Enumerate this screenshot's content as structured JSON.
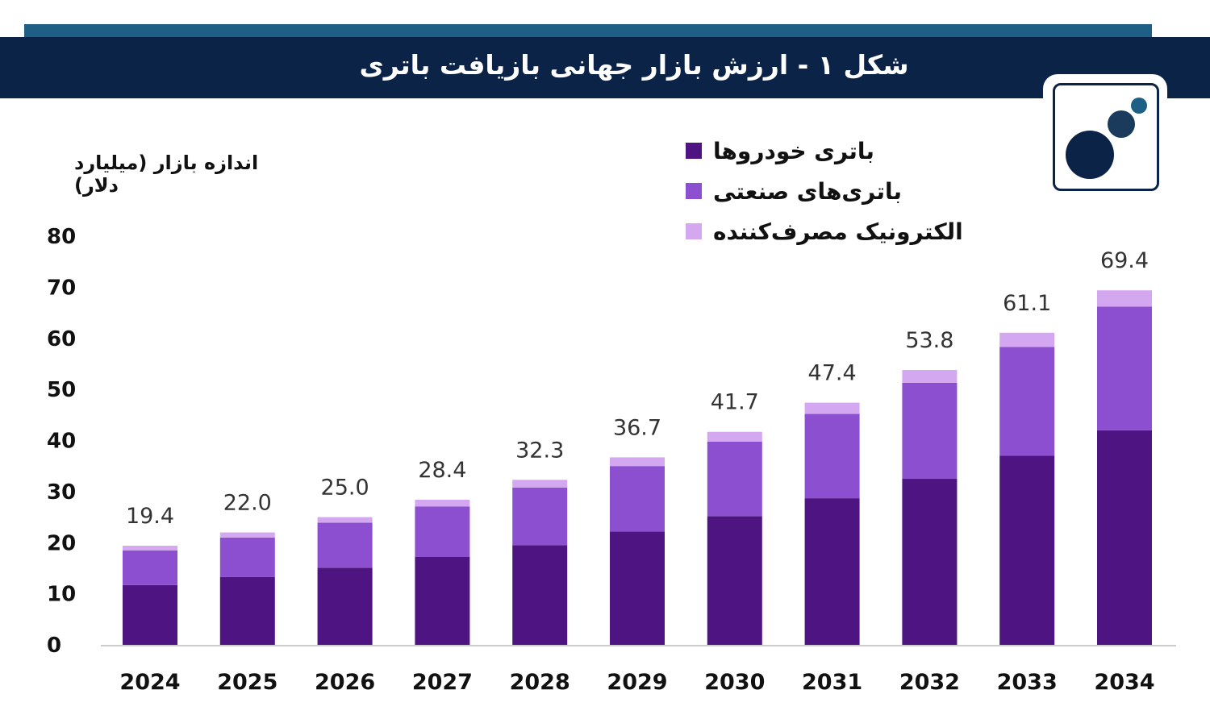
{
  "header": {
    "title": "شکل ۱ - ارزش بازار جهانی بازیافت باتری",
    "logo_icon": "dots-logo-icon"
  },
  "colors": {
    "banner": "#0a2347",
    "strip": "#1f5f86",
    "automotive": "#4e1582",
    "industrial": "#8b4fd0",
    "consumer": "#d4a8f0"
  },
  "chart_data": {
    "type": "bar",
    "stacked": true,
    "title": "شکل ۱ - ارزش بازار جهانی بازیافت باتری",
    "ylabel": "اندازه بازار (میلیارد دلار)",
    "xlabel": "",
    "ylim": [
      0,
      80
    ],
    "yticks": [
      0,
      10,
      20,
      30,
      40,
      50,
      60,
      70,
      80
    ],
    "categories": [
      "2024",
      "2025",
      "2026",
      "2027",
      "2028",
      "2029",
      "2030",
      "2031",
      "2032",
      "2033",
      "2034"
    ],
    "totals": [
      19.4,
      22.0,
      25.0,
      28.4,
      32.3,
      36.7,
      41.7,
      47.4,
      53.8,
      61.1,
      69.4
    ],
    "total_labels": [
      "19.4",
      "22.0",
      "25.0",
      "28.4",
      "32.3",
      "36.7",
      "41.7",
      "47.4",
      "53.8",
      "61.1",
      "69.4"
    ],
    "series": [
      {
        "name": "باتری خودروها",
        "color": "#4e1582",
        "values": [
          11.7,
          13.3,
          15.1,
          17.2,
          19.5,
          22.2,
          25.2,
          28.7,
          32.5,
          37.0,
          42.0
        ]
      },
      {
        "name": "باتری‌های صنعتی",
        "color": "#8b4fd0",
        "values": [
          6.8,
          7.7,
          8.8,
          9.9,
          11.3,
          12.8,
          14.6,
          16.5,
          18.8,
          21.3,
          24.2
        ]
      },
      {
        "name": "الکترونیک مصرف‌کننده",
        "color": "#d4a8f0",
        "values": [
          0.9,
          1.0,
          1.1,
          1.3,
          1.5,
          1.7,
          1.9,
          2.2,
          2.5,
          2.8,
          3.2
        ]
      }
    ],
    "legend_position": "top-right",
    "grid": false
  }
}
